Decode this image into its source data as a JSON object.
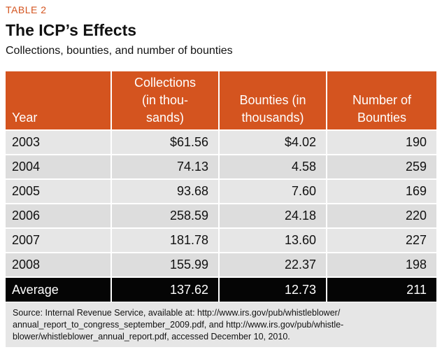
{
  "label": "TABLE 2",
  "title": "The ICP’s Effects",
  "subtitle": "Collections, bounties, and number of bounties",
  "colors": {
    "accent": "#d4541f",
    "row": "#e6e6e6",
    "average_bg": "#050505"
  },
  "table": {
    "headers": {
      "year": "Year",
      "collections": [
        "Collections",
        "(in thou-",
        "sands)"
      ],
      "bounties": [
        "Bounties (in",
        "thousands)"
      ],
      "number": [
        "Number of",
        "Bounties"
      ]
    },
    "rows": [
      {
        "year": "2003",
        "collections": "$61.56",
        "bounties": "$4.02",
        "number": "190"
      },
      {
        "year": "2004",
        "collections": "74.13",
        "bounties": "4.58",
        "number": "259"
      },
      {
        "year": "2005",
        "collections": "93.68",
        "bounties": "7.60",
        "number": "169"
      },
      {
        "year": "2006",
        "collections": "258.59",
        "bounties": "24.18",
        "number": "220"
      },
      {
        "year": "2007",
        "collections": "181.78",
        "bounties": "13.60",
        "number": "227"
      },
      {
        "year": "2008",
        "collections": "155.99",
        "bounties": "22.37",
        "number": "198"
      }
    ],
    "average": {
      "year": "Average",
      "collections": "137.62",
      "bounties": "12.73",
      "number": "211"
    }
  },
  "source": {
    "lines": [
      "Source: Internal Revenue Service, available at: http://www.irs.gov/pub/whistleblower/",
      "annual_report_to_congress_september_2009.pdf, and http://www.irs.gov/pub/whistle-",
      "blower/whistleblower_annual_report.pdf, accessed December 10, 2010."
    ]
  }
}
